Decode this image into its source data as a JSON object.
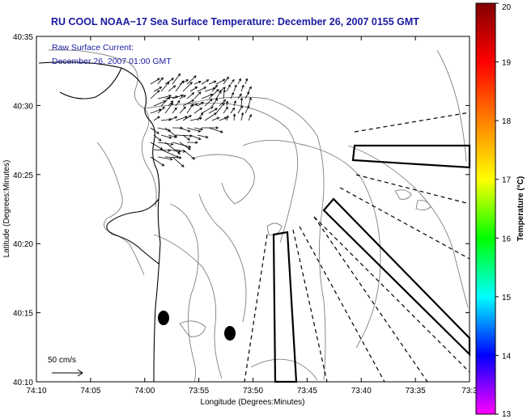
{
  "title": "RU COOL  NOAA−17  Sea Surface Temperature:  December 26, 2007 0155 GMT",
  "subtitle": {
    "line1": "Raw Surface Current:",
    "line2": "December 26, 2007 01:00 GMT"
  },
  "axes": {
    "xlabel": "Longitude (Degrees:Minutes)",
    "ylabel": "Latitude (Degrees:Minutes)",
    "x_ticks": [
      "74:10",
      "74:05",
      "74:00",
      "73:55",
      "73:50",
      "73:45",
      "73:40",
      "73:35",
      "73:3"
    ],
    "y_ticks": [
      "40:35",
      "40:30",
      "40:25",
      "40:20",
      "40:15",
      "40:10"
    ]
  },
  "colorbar": {
    "label": "Temperature (°C)",
    "ticks": [
      "20",
      "19",
      "18",
      "17",
      "16",
      "15",
      "14",
      "13"
    ],
    "range": [
      13,
      20
    ],
    "colors": [
      "#ff00ff",
      "#0000ff",
      "#00ffff",
      "#00ff00",
      "#ffff00",
      "#ff8000",
      "#ff0000",
      "#800000"
    ]
  },
  "scale_label": "50 cm/s"
}
